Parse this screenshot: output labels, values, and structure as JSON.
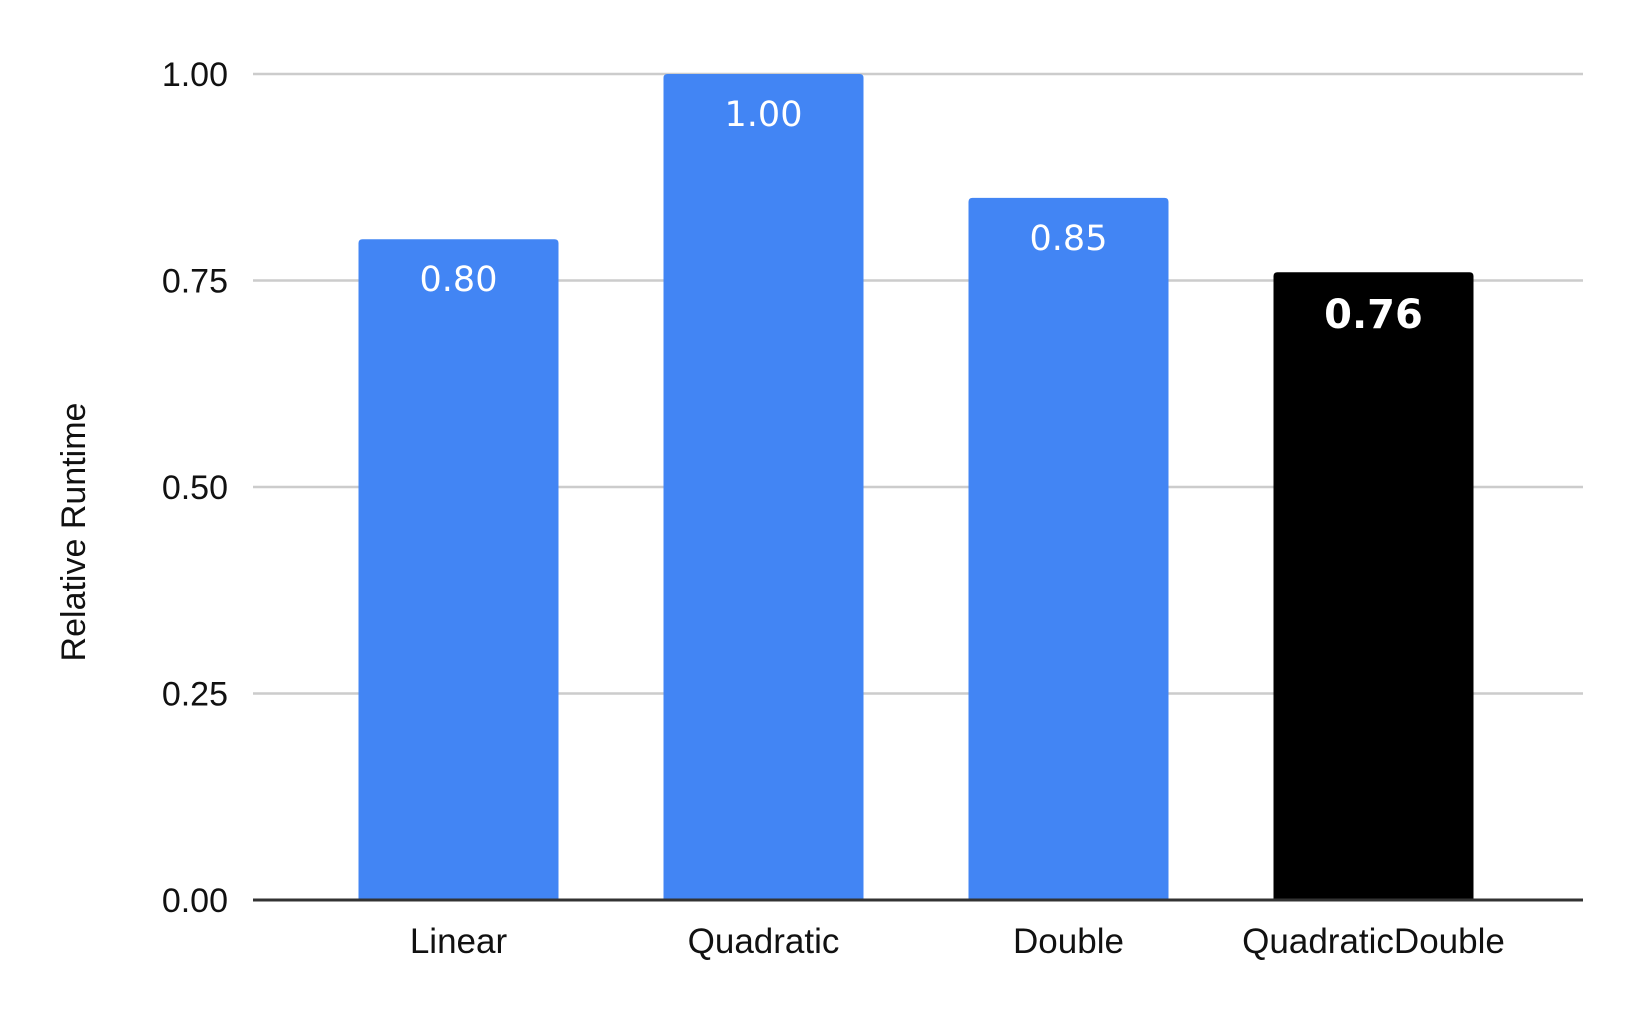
{
  "chart_data": {
    "type": "bar",
    "title": "",
    "xlabel": "",
    "ylabel": "Relative Runtime",
    "categories": [
      "Linear",
      "Quadratic",
      "Double",
      "QuadraticDouble"
    ],
    "values": [
      0.8,
      1.0,
      0.85,
      0.76
    ],
    "data_labels": [
      "0.80",
      "1.00",
      "0.85",
      "0.76"
    ],
    "bar_colors": [
      "#4285f4",
      "#4285f4",
      "#4285f4",
      "#000000"
    ],
    "emphasized": [
      false,
      false,
      false,
      true
    ],
    "ylim": [
      0,
      1.0
    ],
    "yticks": [
      0,
      0.25,
      0.5,
      0.75,
      1.0
    ],
    "ytick_labels": [
      "0.00",
      "0.25",
      "0.50",
      "0.75",
      "1.00"
    ],
    "grid": true,
    "grid_color": "#cccccc",
    "axis_color": "#333333",
    "legend": "none"
  }
}
